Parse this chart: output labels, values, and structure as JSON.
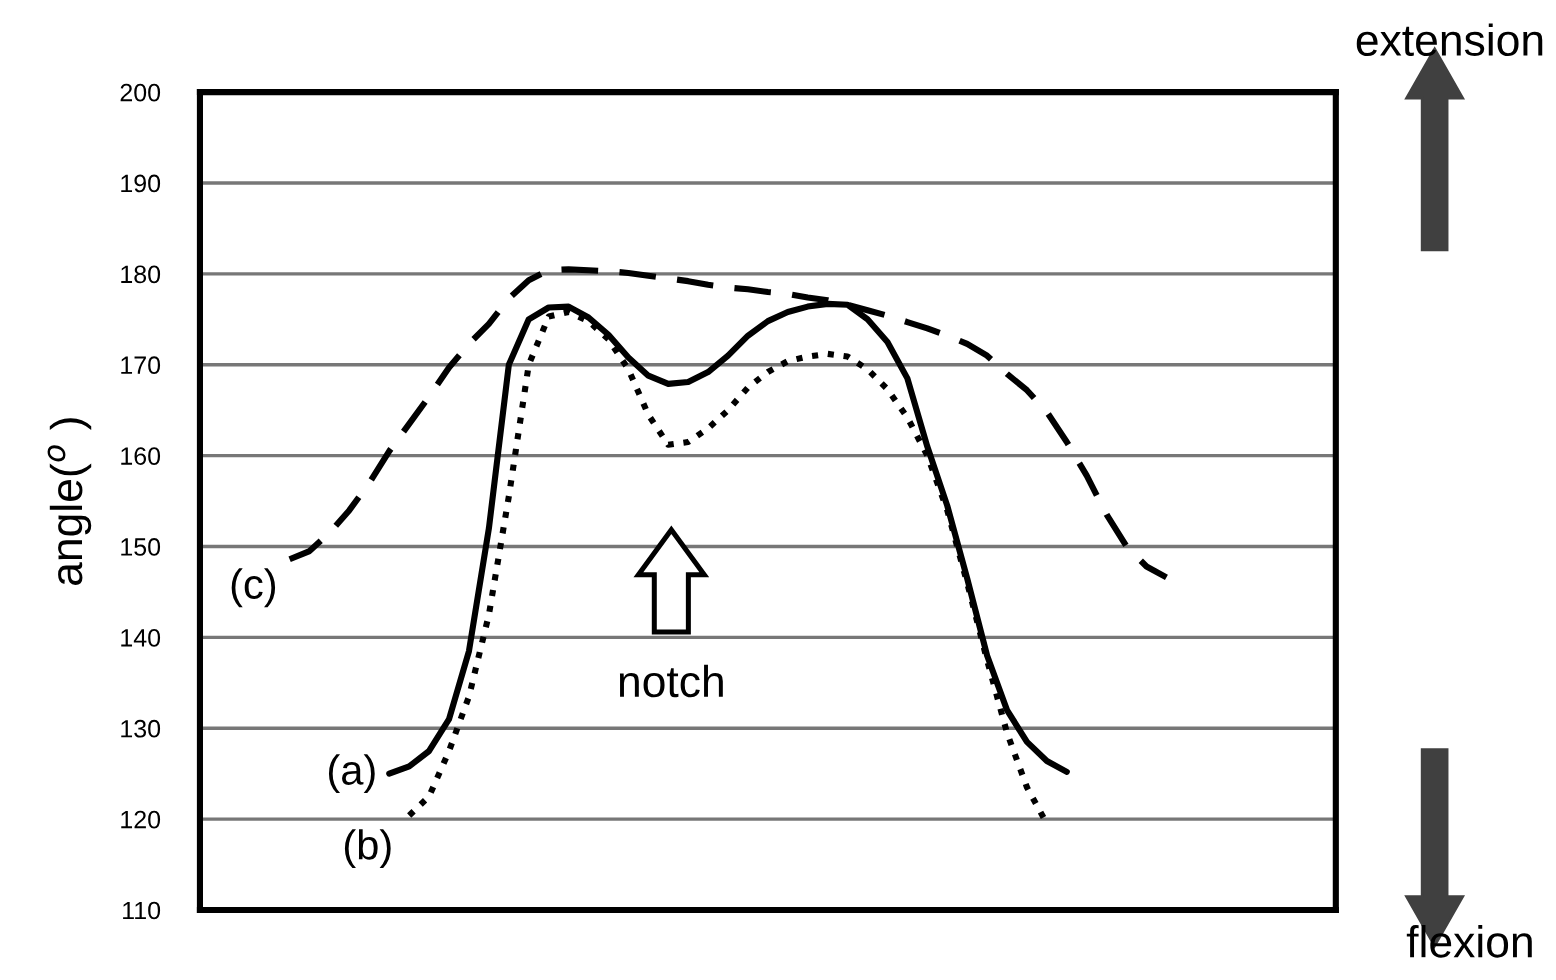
{
  "chart_data": {
    "type": "line",
    "ylabel": "angle($^{o}$ )",
    "categories": [
      null,
      null,
      null,
      null,
      null,
      null,
      null,
      null,
      null,
      null,
      null,
      null,
      null,
      null,
      null,
      null,
      null,
      null,
      null,
      null,
      null,
      null,
      null,
      null,
      null,
      null,
      null,
      null,
      null,
      null,
      null,
      null,
      null,
      null,
      null,
      null,
      null,
      null,
      null,
      null,
      null,
      null,
      null,
      null,
      null,
      null,
      null,
      null,
      null,
      null,
      null,
      null,
      null,
      null,
      null,
      null,
      null
    ],
    "series": [
      {
        "name": "(a)",
        "color": "#000000",
        "line_style": "solid",
        "values": [
          null,
          null,
          null,
          null,
          null,
          null,
          null,
          null,
          null,
          125.0,
          125.8,
          127.5,
          131,
          138.5,
          152,
          170,
          175,
          176.3,
          176.4,
          175.2,
          173.3,
          170.8,
          168.8,
          167.9,
          168.1,
          169.2,
          171,
          173.2,
          174.8,
          175.8,
          176.4,
          176.7,
          176.6,
          175,
          172.5,
          168.5,
          161,
          154.5,
          146.5,
          138,
          132,
          128.5,
          126.4,
          125.2,
          null,
          null,
          null,
          null,
          null,
          null,
          null,
          null,
          null,
          null,
          null,
          null,
          null
        ]
      },
      {
        "name": "(b)",
        "color": "#000000",
        "line_style": "dotted",
        "values": [
          null,
          null,
          null,
          null,
          null,
          null,
          null,
          null,
          null,
          null,
          120.4,
          122.5,
          127.5,
          133.5,
          142.5,
          155.5,
          170,
          175.3,
          175.8,
          174.8,
          172.8,
          169.5,
          164.5,
          161.2,
          161.5,
          163,
          165,
          167.5,
          169.2,
          170.4,
          170.9,
          171.2,
          170.9,
          169.5,
          167.3,
          164.2,
          160,
          154,
          146,
          137.5,
          129.5,
          123.5,
          119.5,
          null,
          null,
          null,
          null,
          null,
          null,
          null,
          null,
          null,
          null,
          null,
          null,
          null,
          null
        ]
      },
      {
        "name": "(c)",
        "color": "#000000",
        "line_style": "dashed",
        "values": [
          null,
          null,
          null,
          null,
          148.6,
          149.5,
          151.5,
          154,
          157,
          160.5,
          163.5,
          166.5,
          169.7,
          172.3,
          174.5,
          177.3,
          179.3,
          180.4,
          180.5,
          180.4,
          180.3,
          180.1,
          179.8,
          179.5,
          179.2,
          178.8,
          178.5,
          178.3,
          178,
          177.8,
          177.4,
          177.1,
          176.6,
          176,
          175.4,
          174.7,
          174,
          173.2,
          172.3,
          171,
          169,
          167.2,
          164.8,
          161.5,
          157.8,
          153.5,
          150,
          147.8,
          146.6,
          null,
          null,
          null,
          null,
          null,
          null,
          null,
          null
        ]
      }
    ],
    "ylim": [
      110,
      200
    ],
    "yticks": [
      110,
      120,
      130,
      140,
      150,
      160,
      170,
      180,
      190,
      200
    ],
    "grid": "y",
    "legend": false,
    "tick_labels": "y",
    "annotations": [
      "notch",
      "extension",
      "flexion"
    ]
  }
}
